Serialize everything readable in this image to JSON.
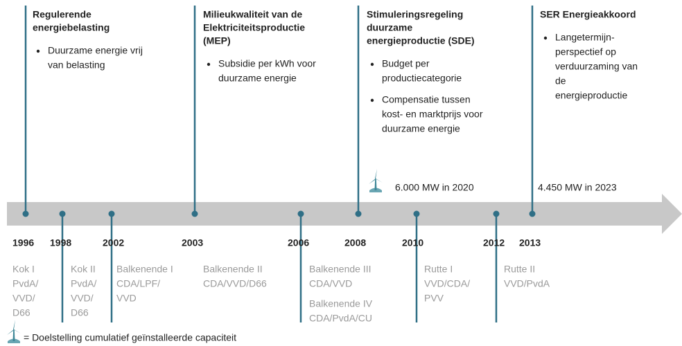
{
  "policies": [
    {
      "title": [
        "Regulerende",
        "energiebelasting"
      ],
      "bullets": [
        [
          "Duurzame energie vrij",
          "van belasting"
        ]
      ]
    },
    {
      "title": [
        "Milieukwaliteit van de",
        "Elektriciteitsproductie",
        "(MEP)"
      ],
      "bullets": [
        [
          "Subsidie per kWh voor",
          "duurzame energie"
        ]
      ]
    },
    {
      "title": [
        "Stimuleringsregeling",
        "duurzame",
        "energieproductie (SDE)"
      ],
      "bullets": [
        [
          "Budget per",
          "productiecategorie"
        ],
        [
          "Compensatie tussen",
          "kost- en marktprijs voor",
          "duurzame energie"
        ]
      ]
    },
    {
      "title": [
        "SER Energieakkoord"
      ],
      "bullets": [
        [
          "Langetermijn-",
          "perspectief op",
          "verduurzaming van",
          "de",
          "energieproductie"
        ]
      ]
    }
  ],
  "targets": [
    "6.000 MW in 2020",
    "4.450 MW in 2023"
  ],
  "years": [
    "1996",
    "1998",
    "2002",
    "2003",
    "2006",
    "2008",
    "2010",
    "2012",
    "2013"
  ],
  "cabinets": [
    [
      "Kok I",
      "PvdA/",
      "VVD/",
      "D66"
    ],
    [
      "Kok II",
      "PvdA/",
      "VVD/",
      "D66"
    ],
    [
      "Balkenende I",
      "CDA/LPF/",
      "VVD"
    ],
    [
      "Balkenende II",
      "CDA/VVD/D66"
    ],
    [
      "Balkenende III",
      "CDA/VVD"
    ],
    [
      "Balkenende IV",
      "CDA/PvdA/CU"
    ],
    [
      "Rutte I",
      "VVD/CDA/",
      "PVV"
    ],
    [
      "Rutte II",
      "VVD/PvdA"
    ]
  ],
  "legend": "= Doelstelling cumulatief geïnstalleerde capaciteit"
}
